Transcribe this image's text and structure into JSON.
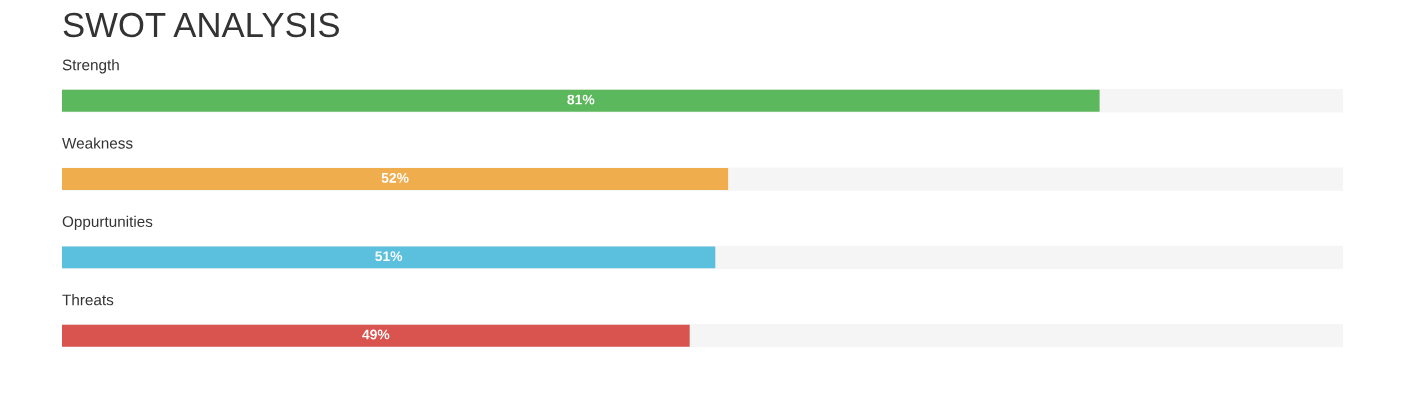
{
  "chart_data": {
    "type": "bar",
    "orientation": "horizontal",
    "title": "SWOT ANALYSIS",
    "categories": [
      "Strength",
      "Weakness",
      "Oppurtunities",
      "Threats"
    ],
    "values": [
      81,
      52,
      51,
      49
    ],
    "colors": [
      "#5cb85c",
      "#f0ad4e",
      "#5bc0de",
      "#d9534f"
    ],
    "value_labels": [
      "81%",
      "52%",
      "51%",
      "49%"
    ],
    "xlim": [
      0,
      100
    ]
  }
}
